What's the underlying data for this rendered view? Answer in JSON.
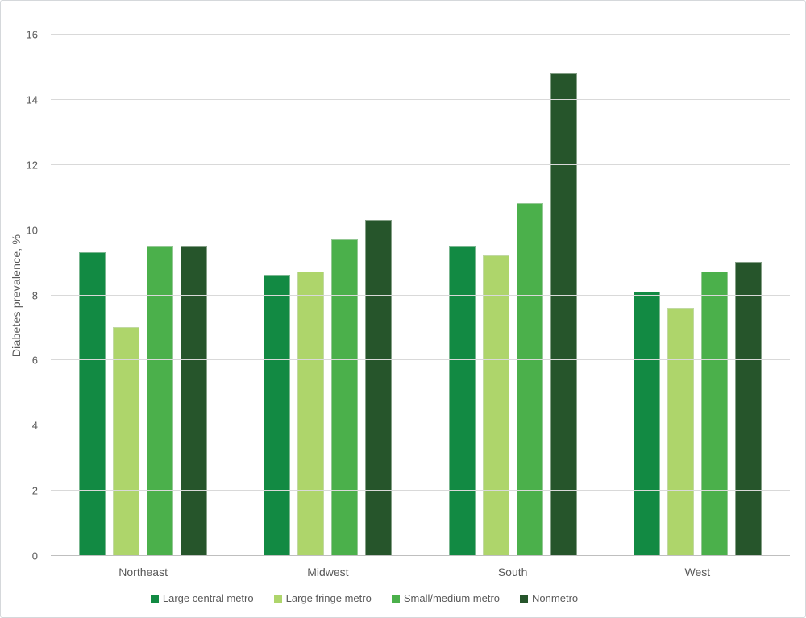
{
  "chart_data": {
    "type": "bar",
    "categories": [
      "Northeast",
      "Midwest",
      "South",
      "West"
    ],
    "series": [
      {
        "name": "Large central metro",
        "color": "#128a43",
        "values": [
          9.3,
          8.6,
          9.5,
          8.1
        ]
      },
      {
        "name": "Large fringe metro",
        "color": "#aed56b",
        "values": [
          7.0,
          8.7,
          9.2,
          7.6
        ]
      },
      {
        "name": "Small/medium metro",
        "color": "#4bb04b",
        "values": [
          9.5,
          9.7,
          10.8,
          8.7
        ]
      },
      {
        "name": "Nonmetro",
        "color": "#26552b",
        "values": [
          9.5,
          10.3,
          14.8,
          9.0
        ]
      }
    ],
    "title": "",
    "xlabel": "",
    "ylabel": "Diabetes prevalence, %",
    "ylim": [
      0,
      16
    ],
    "ytick_step": 2,
    "yticks": [
      0,
      2,
      4,
      6,
      8,
      10,
      12,
      14,
      16
    ],
    "grid": true,
    "legend_position": "bottom",
    "colors": {
      "grid_line": "#d9d9d9",
      "axis_line": "#bfbfbf",
      "text": "#595959",
      "background": "#ffffff"
    }
  }
}
